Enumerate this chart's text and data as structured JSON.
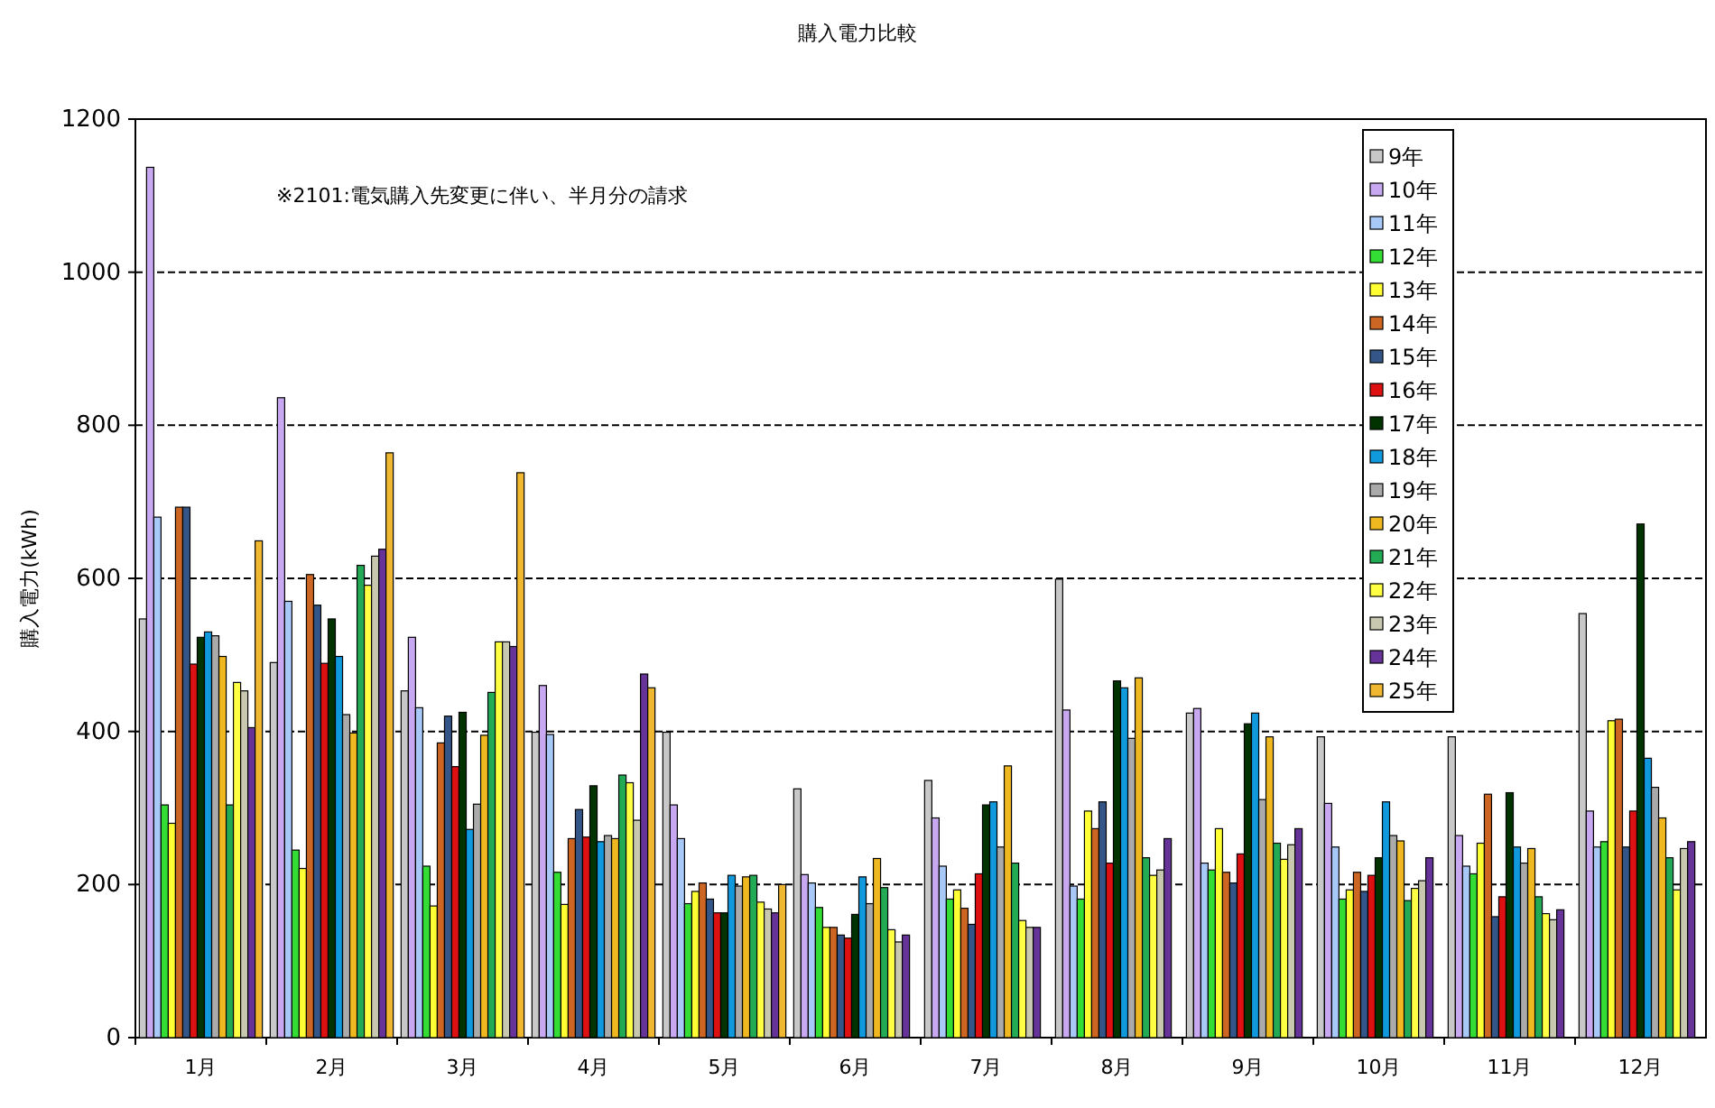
{
  "chart_data": {
    "type": "bar",
    "title": "購入電力比較",
    "ylabel": "購入電力(kWh)",
    "annotations": [
      "※2101:電気購入先変更に伴い、半月分の請求"
    ],
    "categories": [
      "1月",
      "2月",
      "3月",
      "4月",
      "5月",
      "6月",
      "7月",
      "8月",
      "9月",
      "10月",
      "11月",
      "12月"
    ],
    "ylim": [
      0,
      1200
    ],
    "yticks": [
      0,
      200,
      400,
      600,
      800,
      1000,
      1200
    ],
    "grid": "y",
    "legend": "top right",
    "series": [
      {
        "name": "9年",
        "color": "#c8c8c8",
        "values": [
          547,
          490,
          453,
          399,
          399,
          325,
          336,
          599,
          424,
          393,
          393,
          554
        ]
      },
      {
        "name": "10年",
        "color": "#c8a8f0",
        "values": [
          1137,
          836,
          523,
          460,
          304,
          213,
          287,
          428,
          430,
          306,
          264,
          296
        ]
      },
      {
        "name": "11年",
        "color": "#a8c8f8",
        "values": [
          680,
          570,
          431,
          396,
          260,
          202,
          224,
          198,
          228,
          249,
          224,
          249
        ]
      },
      {
        "name": "12年",
        "color": "#33dd33",
        "values": [
          304,
          245,
          224,
          216,
          175,
          170,
          181,
          181,
          219,
          181,
          214,
          256
        ]
      },
      {
        "name": "13年",
        "color": "#ffff33",
        "values": [
          280,
          221,
          172,
          174,
          191,
          144,
          193,
          296,
          273,
          193,
          254,
          414
        ]
      },
      {
        "name": "14年",
        "color": "#cc6622",
        "values": [
          693,
          605,
          385,
          260,
          202,
          144,
          169,
          273,
          216,
          216,
          318,
          416
        ]
      },
      {
        "name": "15年",
        "color": "#335588",
        "values": [
          693,
          565,
          420,
          298,
          181,
          134,
          148,
          308,
          202,
          191,
          158,
          249
        ]
      },
      {
        "name": "16年",
        "color": "#dd1111",
        "values": [
          488,
          489,
          354,
          262,
          163,
          130,
          214,
          228,
          240,
          212,
          184,
          296
        ]
      },
      {
        "name": "17年",
        "color": "#003300",
        "values": [
          523,
          547,
          425,
          329,
          163,
          161,
          304,
          466,
          410,
          235,
          320,
          671
        ]
      },
      {
        "name": "18年",
        "color": "#1199dd",
        "values": [
          530,
          498,
          272,
          256,
          212,
          210,
          308,
          457,
          424,
          308,
          249,
          365
        ]
      },
      {
        "name": "19年",
        "color": "#aaaaaa",
        "values": [
          525,
          422,
          305,
          264,
          198,
          175,
          249,
          391,
          311,
          264,
          228,
          327
        ]
      },
      {
        "name": "20年",
        "color": "#f0b820",
        "values": [
          498,
          398,
          395,
          260,
          210,
          234,
          355,
          470,
          393,
          257,
          247,
          287
        ]
      },
      {
        "name": "21年",
        "color": "#22aa55",
        "values": [
          304,
          617,
          451,
          343,
          212,
          196,
          228,
          235,
          254,
          179,
          184,
          235
        ]
      },
      {
        "name": "22年",
        "color": "#ffff44",
        "values": [
          464,
          591,
          517,
          333,
          177,
          141,
          153,
          212,
          233,
          195,
          162,
          193
        ]
      },
      {
        "name": "23年",
        "color": "#c8c8b0",
        "values": [
          453,
          629,
          517,
          284,
          168,
          125,
          144,
          219,
          252,
          205,
          154,
          247
        ]
      },
      {
        "name": "24年",
        "color": "#663399",
        "values": [
          405,
          638,
          511,
          475,
          163,
          134,
          144,
          260,
          273,
          235,
          167,
          256
        ]
      },
      {
        "name": "25年",
        "color": "#f0b830",
        "values": [
          649,
          764,
          738,
          457,
          200,
          null,
          null,
          null,
          null,
          null,
          null,
          null
        ]
      }
    ]
  }
}
